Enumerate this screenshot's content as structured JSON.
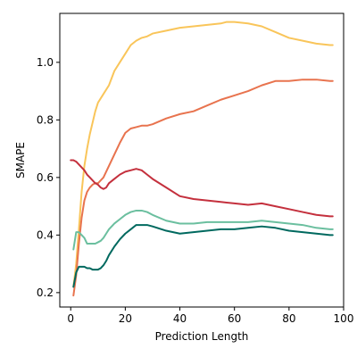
{
  "chart_data": {
    "type": "line",
    "title": "",
    "xlabel": "Prediction Length",
    "ylabel": "SMAPE",
    "xlim": [
      -4,
      100
    ],
    "ylim": [
      0.15,
      1.17
    ],
    "xticks": [
      0,
      20,
      40,
      60,
      80,
      100
    ],
    "yticks": [
      0.2,
      0.4,
      0.6,
      0.8,
      1.0
    ],
    "xtick_labels": [
      "0",
      "20",
      "40",
      "60",
      "80",
      "100"
    ],
    "ytick_labels": [
      "0.2",
      "0.4",
      "0.6",
      "0.8",
      "1.0"
    ],
    "grid": false,
    "legend": "none",
    "series": [
      {
        "color": "#f9c55a",
        "x": [
          1,
          2,
          3,
          4,
          5,
          6,
          7,
          8,
          9,
          10,
          12,
          14,
          16,
          18,
          20,
          22,
          24,
          26,
          28,
          30,
          35,
          40,
          45,
          50,
          55,
          57,
          60,
          65,
          70,
          75,
          80,
          85,
          90,
          95,
          96
        ],
        "y": [
          0.22,
          0.3,
          0.42,
          0.55,
          0.64,
          0.7,
          0.75,
          0.79,
          0.83,
          0.86,
          0.89,
          0.92,
          0.97,
          1.0,
          1.03,
          1.06,
          1.075,
          1.085,
          1.09,
          1.1,
          1.11,
          1.12,
          1.125,
          1.13,
          1.135,
          1.14,
          1.14,
          1.135,
          1.125,
          1.105,
          1.085,
          1.075,
          1.065,
          1.06,
          1.06
        ]
      },
      {
        "color": "#e8734e",
        "x": [
          1,
          2,
          3,
          4,
          5,
          6,
          7,
          8,
          9,
          10,
          12,
          14,
          16,
          18,
          20,
          22,
          24,
          26,
          28,
          30,
          35,
          40,
          45,
          50,
          55,
          60,
          65,
          70,
          75,
          80,
          85,
          90,
          95,
          96
        ],
        "y": [
          0.19,
          0.26,
          0.37,
          0.46,
          0.52,
          0.55,
          0.565,
          0.575,
          0.58,
          0.58,
          0.6,
          0.64,
          0.68,
          0.72,
          0.755,
          0.77,
          0.775,
          0.78,
          0.78,
          0.785,
          0.805,
          0.82,
          0.83,
          0.85,
          0.87,
          0.885,
          0.9,
          0.92,
          0.935,
          0.935,
          0.94,
          0.94,
          0.935,
          0.935
        ]
      },
      {
        "color": "#c4303d",
        "x": [
          0,
          1,
          2,
          3,
          4,
          5,
          6,
          7,
          8,
          9,
          10,
          11,
          12,
          13,
          14,
          16,
          18,
          20,
          22,
          24,
          26,
          28,
          30,
          35,
          40,
          45,
          50,
          55,
          60,
          65,
          70,
          75,
          80,
          85,
          90,
          95,
          96
        ],
        "y": [
          0.66,
          0.66,
          0.655,
          0.645,
          0.635,
          0.625,
          0.61,
          0.6,
          0.59,
          0.58,
          0.575,
          0.565,
          0.56,
          0.565,
          0.58,
          0.595,
          0.61,
          0.62,
          0.625,
          0.63,
          0.625,
          0.61,
          0.595,
          0.565,
          0.535,
          0.525,
          0.52,
          0.515,
          0.51,
          0.505,
          0.51,
          0.5,
          0.49,
          0.48,
          0.47,
          0.465,
          0.465
        ]
      },
      {
        "color": "#6bbf9f",
        "x": [
          1,
          2,
          3,
          4,
          5,
          6,
          7,
          8,
          9,
          10,
          11,
          12,
          13,
          14,
          16,
          18,
          20,
          22,
          24,
          26,
          28,
          30,
          35,
          40,
          45,
          50,
          55,
          60,
          65,
          70,
          75,
          80,
          85,
          90,
          95,
          96
        ],
        "y": [
          0.35,
          0.41,
          0.41,
          0.4,
          0.39,
          0.37,
          0.37,
          0.37,
          0.37,
          0.375,
          0.38,
          0.39,
          0.405,
          0.42,
          0.44,
          0.455,
          0.47,
          0.48,
          0.485,
          0.485,
          0.48,
          0.47,
          0.45,
          0.44,
          0.44,
          0.445,
          0.445,
          0.445,
          0.445,
          0.45,
          0.445,
          0.44,
          0.435,
          0.425,
          0.42,
          0.42
        ]
      },
      {
        "color": "#00695f",
        "x": [
          1,
          2,
          3,
          4,
          5,
          6,
          7,
          8,
          9,
          10,
          11,
          12,
          13,
          14,
          16,
          18,
          20,
          22,
          24,
          26,
          28,
          30,
          35,
          40,
          45,
          50,
          55,
          60,
          65,
          70,
          75,
          80,
          85,
          90,
          95,
          96
        ],
        "y": [
          0.22,
          0.27,
          0.29,
          0.29,
          0.29,
          0.285,
          0.285,
          0.28,
          0.28,
          0.28,
          0.285,
          0.295,
          0.31,
          0.33,
          0.36,
          0.385,
          0.405,
          0.42,
          0.435,
          0.435,
          0.435,
          0.43,
          0.415,
          0.405,
          0.41,
          0.415,
          0.42,
          0.42,
          0.425,
          0.43,
          0.425,
          0.415,
          0.41,
          0.405,
          0.4,
          0.4
        ]
      }
    ]
  }
}
